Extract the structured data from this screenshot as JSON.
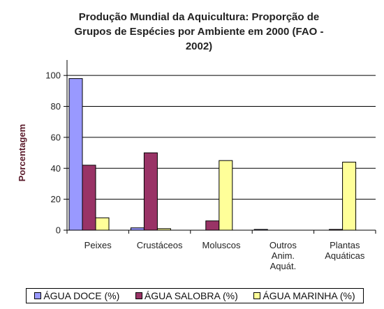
{
  "chart_data": {
    "type": "bar",
    "title_lines": [
      "Produção Mundial da Aquicultura: Proporção de",
      "Grupos de Espécies por Ambiente em 2000 (FAO -",
      "2002)"
    ],
    "ylabel": "Porcentagem",
    "xlabel": "",
    "ylim": [
      0,
      110
    ],
    "yticks": [
      0,
      20,
      40,
      60,
      80,
      100
    ],
    "ytick_labels": [
      "0",
      "20",
      "40",
      "60",
      "80",
      "100"
    ],
    "grid": "horizontal",
    "legend_position": "bottom",
    "categories": [
      [
        "Peixes"
      ],
      [
        "Crustáceos"
      ],
      [
        "Moluscos"
      ],
      [
        "Outros",
        "Anim.",
        "Aquát."
      ],
      [
        "Plantas",
        "Aquáticas"
      ]
    ],
    "series": [
      {
        "name": "ÁGUA DOCE (%)",
        "color": "#9999ff",
        "values": [
          98,
          1.5,
          0,
          0.5,
          0
        ]
      },
      {
        "name": "ÁGUA SALOBRA (%)",
        "color": "#993366",
        "values": [
          42,
          50,
          6,
          0,
          0.5
        ]
      },
      {
        "name": "ÁGUA MARINHA (%)",
        "color": "#ffff99",
        "values": [
          8,
          1,
          45,
          0,
          44
        ]
      }
    ]
  }
}
